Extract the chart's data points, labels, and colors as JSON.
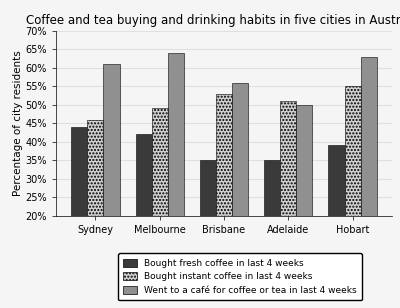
{
  "title": "Coffee and tea buying and drinking habits in five cities in Australia",
  "ylabel": "Percentage of city residents",
  "cities": [
    "Sydney",
    "Melbourne",
    "Brisbane",
    "Adelaide",
    "Hobart"
  ],
  "series": {
    "fresh_coffee": [
      44,
      42,
      35,
      35,
      39
    ],
    "instant_coffee": [
      46,
      49,
      53,
      51,
      55
    ],
    "cafe": [
      61,
      64,
      56,
      50,
      63
    ]
  },
  "legend_labels": [
    "Bought fresh coffee in last 4 weeks",
    "Bought instant coffee in last 4 weeks",
    "Went to a café for coffee or tea in last 4 weeks"
  ],
  "ylim": [
    20,
    70
  ],
  "yticks": [
    20,
    25,
    30,
    35,
    40,
    45,
    50,
    55,
    60,
    65,
    70
  ],
  "bar_width": 0.25,
  "colors": {
    "fresh_coffee": "#3a3a3a",
    "instant_coffee": "#d0d0d0",
    "cafe": "#909090"
  },
  "hatch": {
    "fresh_coffee": "",
    "instant_coffee": ".....",
    "cafe": ""
  },
  "background_color": "#f5f5f5",
  "plot_bg_color": "#f5f5f5",
  "grid_color": "#e0e0e0",
  "title_fontsize": 8.5,
  "label_fontsize": 7.5,
  "tick_fontsize": 7,
  "legend_fontsize": 6.5
}
